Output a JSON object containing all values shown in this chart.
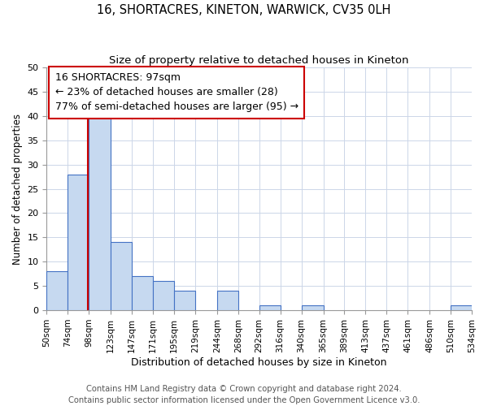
{
  "title": "16, SHORTACRES, KINETON, WARWICK, CV35 0LH",
  "subtitle": "Size of property relative to detached houses in Kineton",
  "xlabel": "Distribution of detached houses by size in Kineton",
  "ylabel": "Number of detached properties",
  "bar_edges": [
    50,
    74,
    98,
    123,
    147,
    171,
    195,
    219,
    244,
    268,
    292,
    316,
    340,
    365,
    389,
    413,
    437,
    461,
    486,
    510,
    534
  ],
  "bar_heights": [
    8,
    28,
    40,
    14,
    7,
    6,
    4,
    0,
    4,
    0,
    1,
    0,
    1,
    0,
    0,
    0,
    0,
    0,
    0,
    1
  ],
  "bar_color": "#c6d9f0",
  "bar_edge_color": "#4472c4",
  "property_line_x": 97,
  "property_line_color": "#cc0000",
  "annotation_line1": "16 SHORTACRES: 97sqm",
  "annotation_line2": "← 23% of detached houses are smaller (28)",
  "annotation_line3": "77% of semi-detached houses are larger (95) →",
  "annotation_box_color": "#cc0000",
  "ylim": [
    0,
    50
  ],
  "yticks": [
    0,
    5,
    10,
    15,
    20,
    25,
    30,
    35,
    40,
    45,
    50
  ],
  "tick_labels": [
    "50sqm",
    "74sqm",
    "98sqm",
    "123sqm",
    "147sqm",
    "171sqm",
    "195sqm",
    "219sqm",
    "244sqm",
    "268sqm",
    "292sqm",
    "316sqm",
    "340sqm",
    "365sqm",
    "389sqm",
    "413sqm",
    "437sqm",
    "461sqm",
    "486sqm",
    "510sqm",
    "534sqm"
  ],
  "grid_color": "#ccd6e8",
  "footer_line1": "Contains HM Land Registry data © Crown copyright and database right 2024.",
  "footer_line2": "Contains public sector information licensed under the Open Government Licence v3.0.",
  "title_fontsize": 10.5,
  "subtitle_fontsize": 9.5,
  "xlabel_fontsize": 9,
  "ylabel_fontsize": 8.5,
  "footer_fontsize": 7.2,
  "tick_fontsize": 7.5,
  "ytick_fontsize": 8,
  "annot_fontsize": 9
}
